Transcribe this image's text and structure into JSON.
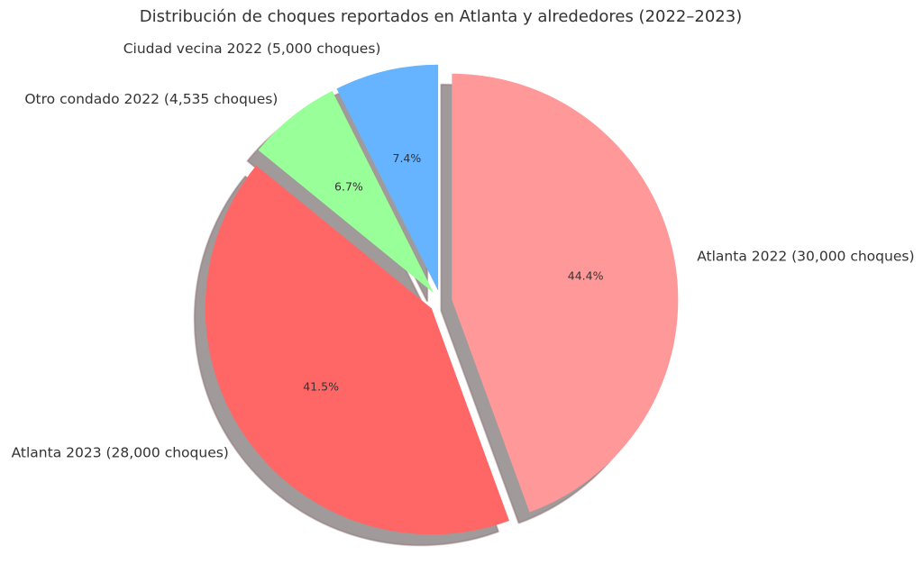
{
  "chart_data": {
    "type": "pie",
    "title": "Distribución de choques reportados en Atlanta y alrededores (2022–2023)",
    "startangle_deg": 90,
    "direction": "clockwise",
    "shadow": true,
    "slices": [
      {
        "label": "Atlanta 2022 (30,000 choques)",
        "value": 30000,
        "percent_label": "44.4%",
        "color": "#ff9999",
        "exploded": true
      },
      {
        "label": "Atlanta 2023 (28,000 choques)",
        "value": 28000,
        "percent_label": "41.5%",
        "color": "#ff6666",
        "exploded": true
      },
      {
        "label": "Otro condado 2022 (4,535 choques)",
        "value": 4535,
        "percent_label": "6.7%",
        "color": "#99ff99",
        "exploded": true
      },
      {
        "label": "Ciudad vecina 2022 (5,000 choques)",
        "value": 5000,
        "percent_label": "7.4%",
        "color": "#66b3ff",
        "exploded": true
      }
    ]
  }
}
